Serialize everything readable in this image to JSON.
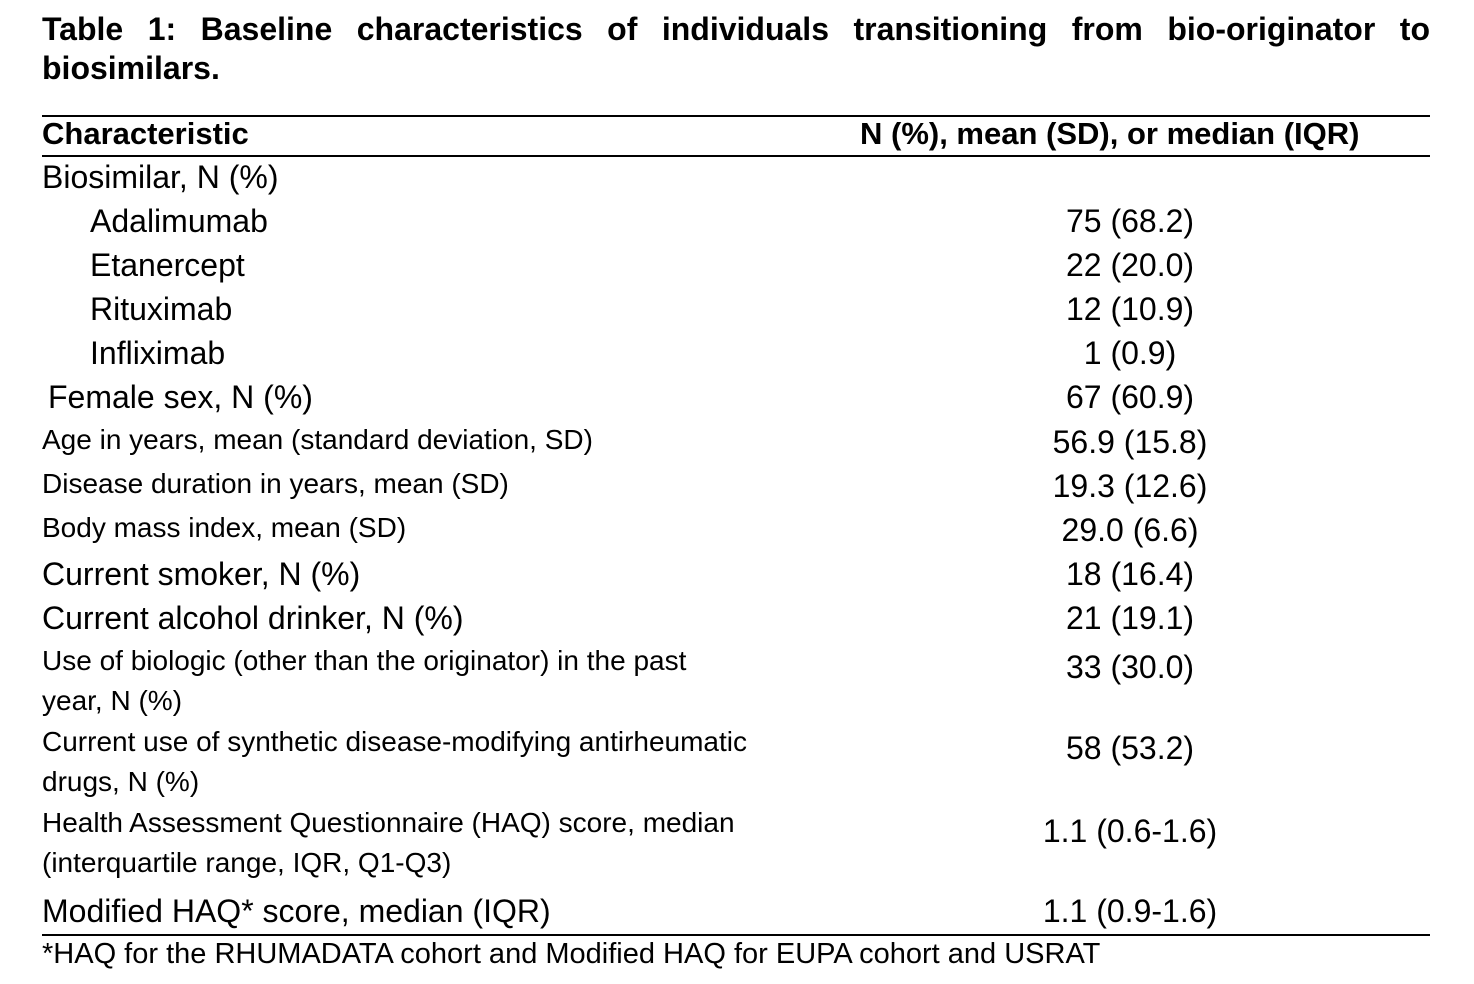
{
  "table": {
    "caption": "Table 1: Baseline characteristics of individuals transitioning from bio-originator to biosimilars.",
    "header": {
      "characteristic": "Characteristic",
      "value": "N (%), mean (SD), or median (IQR)"
    },
    "rows": [
      {
        "label": "Biosimilar, N (%)",
        "value": ""
      },
      {
        "label": "Adalimumab",
        "value": "75 (68.2)"
      },
      {
        "label": "Etanercept",
        "value": "22 (20.0)"
      },
      {
        "label": "Rituximab",
        "value": "12 (10.9)"
      },
      {
        "label": "Infliximab",
        "value": "1 (0.9)"
      },
      {
        "label": "Female sex, N (%)",
        "value": "67 (60.9)"
      },
      {
        "label": "Age in years, mean (standard deviation, SD)",
        "value": "56.9 (15.8)"
      },
      {
        "label": "Disease duration in years, mean (SD)",
        "value": "19.3 (12.6)"
      },
      {
        "label": "Body mass index, mean (SD)",
        "value": "29.0 (6.6)"
      },
      {
        "label": "Current smoker, N (%)",
        "value": "18 (16.4)"
      },
      {
        "label": "Current alcohol drinker, N (%)",
        "value": "21 (19.1)"
      },
      {
        "label_line1": "Use of biologic (other than the originator) in the past",
        "label_line2": "year, N (%)",
        "value": "33 (30.0)"
      },
      {
        "label_line1": "Current use of synthetic disease-modifying antirheumatic",
        "label_line2": "drugs, N (%)",
        "value": "58 (53.2)"
      },
      {
        "label_line1": "Health Assessment Questionnaire (HAQ) score, median",
        "label_line2": "(interquartile range, IQR, Q1-Q3)",
        "value": "1.1 (0.6-1.6)"
      },
      {
        "label": "Modified HAQ* score, median (IQR)",
        "value": "1.1 (0.9-1.6)"
      }
    ],
    "footnote": "*HAQ for the RHUMADATA cohort and Modified HAQ for EUPA cohort and USRAT"
  }
}
